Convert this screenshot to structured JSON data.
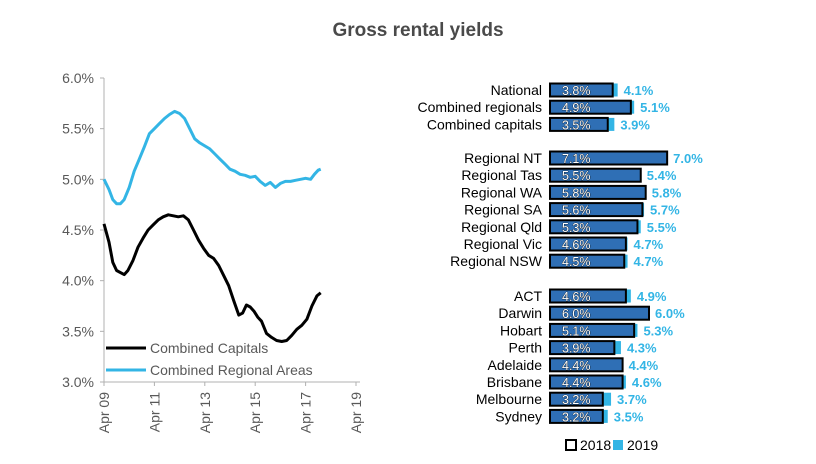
{
  "title": "Gross rental yields",
  "chart_data": [
    {
      "type": "line",
      "y_unit": "%",
      "ylim": [
        3.0,
        6.0
      ],
      "y_ticks": [
        "6.0%",
        "5.5%",
        "5.0%",
        "4.5%",
        "4.0%",
        "3.5%",
        "3.0%"
      ],
      "y_tick_values": [
        6.0,
        5.5,
        5.0,
        4.5,
        4.0,
        3.5,
        3.0
      ],
      "x_ticks": [
        "Apr 09",
        "Apr 11",
        "Apr 13",
        "Apr 15",
        "Apr 17",
        "Apr 19"
      ],
      "x_tick_values": [
        2009.25,
        2011.25,
        2013.25,
        2015.25,
        2017.25,
        2019.25
      ],
      "grid": false,
      "legend_position": "bottom-left",
      "series": [
        {
          "name": "Combined Capitals",
          "color": "#000000",
          "points": [
            [
              2009.25,
              4.56
            ],
            [
              2009.45,
              4.38
            ],
            [
              2009.6,
              4.18
            ],
            [
              2009.75,
              4.1
            ],
            [
              2009.9,
              4.08
            ],
            [
              2010.05,
              4.06
            ],
            [
              2010.2,
              4.1
            ],
            [
              2010.4,
              4.2
            ],
            [
              2010.6,
              4.33
            ],
            [
              2010.8,
              4.42
            ],
            [
              2011.0,
              4.5
            ],
            [
              2011.2,
              4.55
            ],
            [
              2011.4,
              4.6
            ],
            [
              2011.6,
              4.63
            ],
            [
              2011.8,
              4.65
            ],
            [
              2012.0,
              4.64
            ],
            [
              2012.2,
              4.63
            ],
            [
              2012.4,
              4.64
            ],
            [
              2012.6,
              4.6
            ],
            [
              2012.8,
              4.5
            ],
            [
              2013.0,
              4.4
            ],
            [
              2013.2,
              4.32
            ],
            [
              2013.4,
              4.25
            ],
            [
              2013.6,
              4.22
            ],
            [
              2013.8,
              4.15
            ],
            [
              2014.0,
              4.05
            ],
            [
              2014.2,
              3.95
            ],
            [
              2014.4,
              3.8
            ],
            [
              2014.6,
              3.66
            ],
            [
              2014.75,
              3.68
            ],
            [
              2014.9,
              3.76
            ],
            [
              2015.05,
              3.74
            ],
            [
              2015.2,
              3.7
            ],
            [
              2015.35,
              3.64
            ],
            [
              2015.5,
              3.6
            ],
            [
              2015.7,
              3.48
            ],
            [
              2015.9,
              3.44
            ],
            [
              2016.1,
              3.41
            ],
            [
              2016.3,
              3.4
            ],
            [
              2016.5,
              3.41
            ],
            [
              2016.7,
              3.46
            ],
            [
              2016.9,
              3.52
            ],
            [
              2017.1,
              3.56
            ],
            [
              2017.3,
              3.62
            ],
            [
              2017.5,
              3.75
            ],
            [
              2017.7,
              3.85
            ],
            [
              2017.85,
              3.88
            ]
          ]
        },
        {
          "name": "Combined Regional Areas",
          "color": "#33b5e5",
          "points": [
            [
              2009.25,
              5.0
            ],
            [
              2009.45,
              4.9
            ],
            [
              2009.6,
              4.8
            ],
            [
              2009.75,
              4.76
            ],
            [
              2009.9,
              4.76
            ],
            [
              2010.05,
              4.8
            ],
            [
              2010.25,
              4.92
            ],
            [
              2010.45,
              5.08
            ],
            [
              2010.65,
              5.2
            ],
            [
              2010.85,
              5.32
            ],
            [
              2011.05,
              5.45
            ],
            [
              2011.25,
              5.5
            ],
            [
              2011.45,
              5.55
            ],
            [
              2011.65,
              5.6
            ],
            [
              2011.85,
              5.64
            ],
            [
              2012.05,
              5.67
            ],
            [
              2012.25,
              5.65
            ],
            [
              2012.45,
              5.6
            ],
            [
              2012.65,
              5.5
            ],
            [
              2012.85,
              5.4
            ],
            [
              2013.05,
              5.36
            ],
            [
              2013.25,
              5.33
            ],
            [
              2013.45,
              5.3
            ],
            [
              2013.65,
              5.25
            ],
            [
              2013.85,
              5.2
            ],
            [
              2014.05,
              5.15
            ],
            [
              2014.25,
              5.1
            ],
            [
              2014.45,
              5.08
            ],
            [
              2014.65,
              5.05
            ],
            [
              2014.85,
              5.04
            ],
            [
              2015.05,
              5.02
            ],
            [
              2015.25,
              5.03
            ],
            [
              2015.45,
              4.98
            ],
            [
              2015.65,
              4.94
            ],
            [
              2015.85,
              4.97
            ],
            [
              2016.05,
              4.92
            ],
            [
              2016.25,
              4.96
            ],
            [
              2016.45,
              4.98
            ],
            [
              2016.65,
              4.98
            ],
            [
              2016.85,
              4.99
            ],
            [
              2017.05,
              5.0
            ],
            [
              2017.25,
              5.01
            ],
            [
              2017.45,
              5.0
            ],
            [
              2017.6,
              5.05
            ],
            [
              2017.75,
              5.09
            ],
            [
              2017.85,
              5.1
            ]
          ]
        }
      ]
    },
    {
      "type": "bar",
      "orientation": "horizontal",
      "value_unit": "%",
      "xlim": [
        0,
        8
      ],
      "legend_position": "bottom",
      "categories": [
        "National",
        "Combined regionals",
        "Combined capitals",
        "Regional NT",
        "Regional Tas",
        "Regional WA",
        "Regional SA",
        "Regional Qld",
        "Regional Vic",
        "Regional NSW",
        "ACT",
        "Darwin",
        "Hobart",
        "Perth",
        "Adelaide",
        "Brisbane",
        "Melbourne",
        "Sydney"
      ],
      "groups": [
        3,
        7,
        8
      ],
      "series": [
        {
          "name": "2018",
          "color": "#2f6fb5",
          "values": [
            3.8,
            4.9,
            3.5,
            7.1,
            5.5,
            5.8,
            5.6,
            5.3,
            4.6,
            4.5,
            4.6,
            6.0,
            5.1,
            3.9,
            4.4,
            4.4,
            3.2,
            3.2
          ],
          "labels": [
            "3.8%",
            "4.9%",
            "3.5%",
            "7.1%",
            "5.5%",
            "5.8%",
            "5.6%",
            "5.3%",
            "4.6%",
            "4.5%",
            "4.6%",
            "6.0%",
            "5.1%",
            "3.9%",
            "4.4%",
            "4.4%",
            "3.2%",
            "3.2%"
          ]
        },
        {
          "name": "2019",
          "color": "#33b5e5",
          "values": [
            4.1,
            5.1,
            3.9,
            7.0,
            5.4,
            5.8,
            5.7,
            5.5,
            4.7,
            4.7,
            4.9,
            6.0,
            5.3,
            4.3,
            4.4,
            4.6,
            3.7,
            3.5
          ],
          "labels": [
            "4.1%",
            "5.1%",
            "3.9%",
            "7.0%",
            "5.4%",
            "5.8%",
            "5.7%",
            "5.5%",
            "4.7%",
            "4.7%",
            "4.9%",
            "6.0%",
            "5.3%",
            "4.3%",
            "4.4%",
            "4.6%",
            "3.7%",
            "3.5%"
          ]
        }
      ]
    }
  ]
}
